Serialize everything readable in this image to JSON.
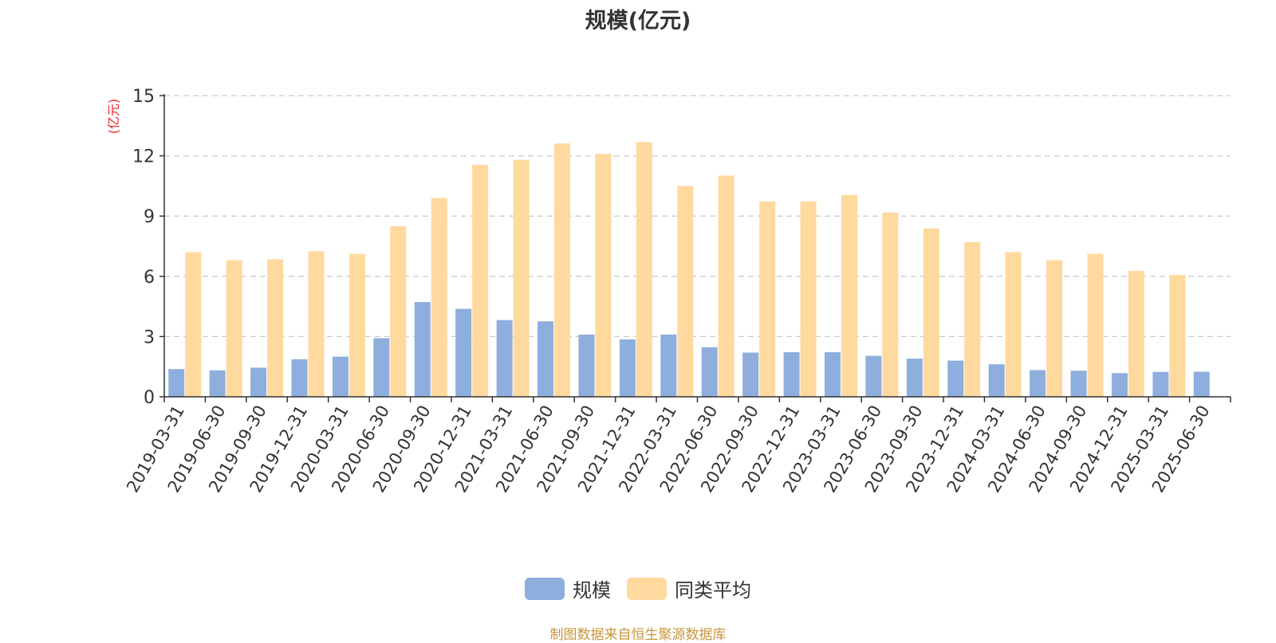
{
  "chart_data": {
    "type": "bar",
    "title": "规模(亿元)",
    "ylabel": "(亿元)",
    "ylim": [
      0,
      15
    ],
    "yticks": [
      "0",
      "3",
      "6",
      "9",
      "12",
      "15"
    ],
    "grid": true,
    "legend_position": "bottom",
    "categories": [
      "2019-03-31",
      "2019-06-30",
      "2019-09-30",
      "2019-12-31",
      "2020-03-31",
      "2020-06-30",
      "2020-09-30",
      "2020-12-31",
      "2021-03-31",
      "2021-06-30",
      "2021-09-30",
      "2021-12-31",
      "2022-03-31",
      "2022-06-30",
      "2022-09-30",
      "2022-12-31",
      "2023-03-31",
      "2023-06-30",
      "2023-09-30",
      "2023-12-31",
      "2024-03-31",
      "2024-06-30",
      "2024-09-30",
      "2024-12-31",
      "2025-03-31",
      "2025-06-30"
    ],
    "series": [
      {
        "name": "规模",
        "color": "#8eaedd",
        "values": [
          1.38,
          1.32,
          1.45,
          1.87,
          2.0,
          2.92,
          4.72,
          4.38,
          3.82,
          3.76,
          3.1,
          2.86,
          3.1,
          2.47,
          2.2,
          2.22,
          2.22,
          2.04,
          1.9,
          1.8,
          1.62,
          1.33,
          1.3,
          1.18,
          1.24,
          1.25
        ]
      },
      {
        "name": "同类平均",
        "color": "#ffd99e",
        "values": [
          7.2,
          6.8,
          6.85,
          7.25,
          7.12,
          8.5,
          9.9,
          11.55,
          11.8,
          12.62,
          12.1,
          12.68,
          10.5,
          11.02,
          9.73,
          9.73,
          10.05,
          9.18,
          8.38,
          7.7,
          7.2,
          6.8,
          7.12,
          6.27,
          6.07,
          null
        ]
      }
    ]
  },
  "footer": {
    "source": "制图数据来自恒生聚源数据库"
  }
}
